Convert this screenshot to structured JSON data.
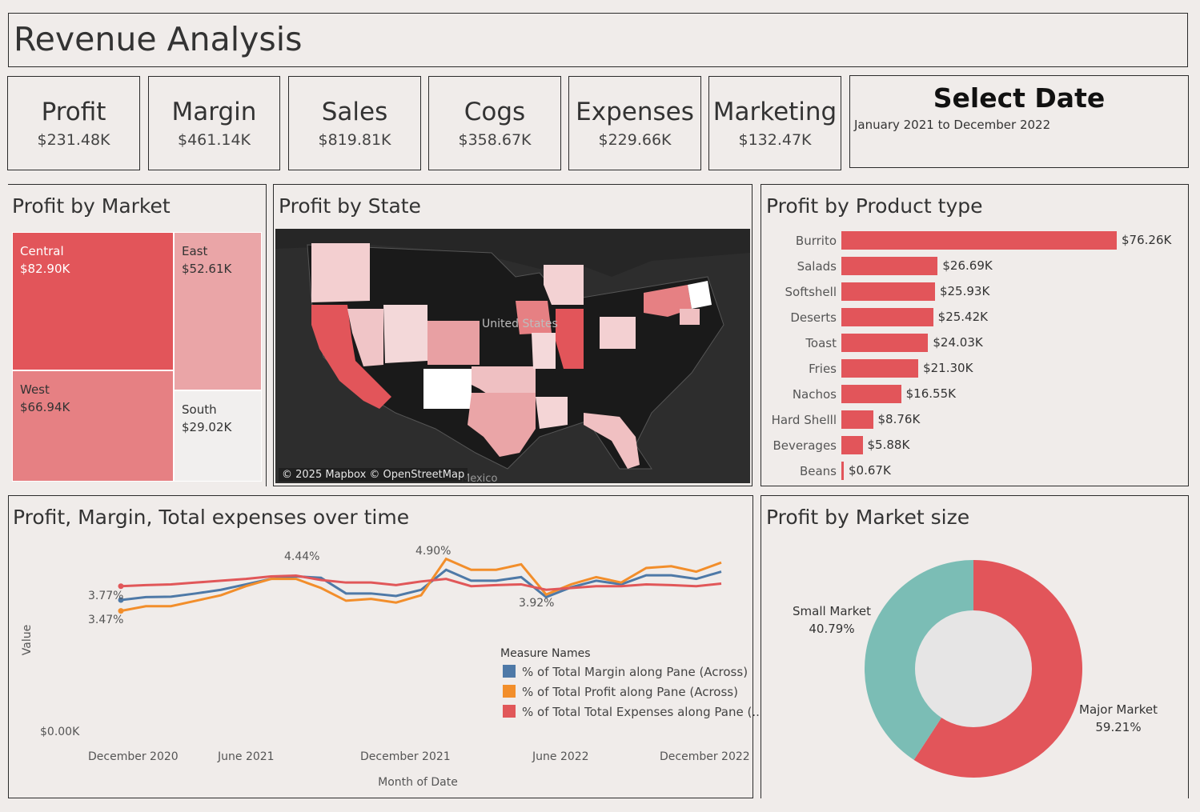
{
  "dashboard": {
    "title": "Revenue Analysis"
  },
  "kpis": [
    {
      "label": "Profit",
      "value": "$231.48K"
    },
    {
      "label": "Margin",
      "value": "$461.14K"
    },
    {
      "label": "Sales",
      "value": "$819.81K"
    },
    {
      "label": "Cogs",
      "value": "$358.67K"
    },
    {
      "label": "Expenses",
      "value": "$229.66K"
    },
    {
      "label": "Marketing",
      "value": "$132.47K"
    }
  ],
  "select_date": {
    "title": "Select Date",
    "range": "January 2021 to December 2022"
  },
  "market": {
    "title": "Profit by Market",
    "cells": [
      {
        "name": "Central",
        "value": "$82.90K",
        "color": "#e2555a"
      },
      {
        "name": "East",
        "value": "$52.61K",
        "color": "#eaa5a7"
      },
      {
        "name": "West",
        "value": "$66.94K",
        "color": "#e68083"
      },
      {
        "name": "South",
        "value": "$29.02K",
        "color": "#f1efee"
      }
    ]
  },
  "state_map": {
    "title": "Profit by State",
    "attribution": "© 2025 Mapbox © OpenStreetMap",
    "country_label": "United States",
    "mexico_label": "Mexico"
  },
  "product": {
    "title": "Profit by Product type",
    "items": [
      {
        "name": "Burrito",
        "value": 76.26,
        "label": "$76.26K"
      },
      {
        "name": "Salads",
        "value": 26.69,
        "label": "$26.69K"
      },
      {
        "name": "Softshell",
        "value": 25.93,
        "label": "$25.93K"
      },
      {
        "name": "Deserts",
        "value": 25.42,
        "label": "$25.42K"
      },
      {
        "name": "Toast",
        "value": 24.03,
        "label": "$24.03K"
      },
      {
        "name": "Fries",
        "value": 21.3,
        "label": "$21.30K"
      },
      {
        "name": "Nachos",
        "value": 16.55,
        "label": "$16.55K"
      },
      {
        "name": "Hard Shelll",
        "value": 8.76,
        "label": "$8.76K"
      },
      {
        "name": "Beverages",
        "value": 5.88,
        "label": "$5.88K"
      },
      {
        "name": "Beans",
        "value": 0.67,
        "label": "$0.67K"
      }
    ],
    "bar_color": "#e2555a"
  },
  "timeseries": {
    "title": "Profit, Margin, Total expenses over time",
    "ylabel": "Value",
    "xlabel": "Month of Date",
    "y_zero_label": "$0.00K",
    "x_ticks": [
      "December 2020",
      "June 2021",
      "December 2021",
      "June 2022",
      "December 2022"
    ],
    "legend_title": "Measure Names",
    "series": [
      {
        "name": "% of Total Margin along Pane (Across)",
        "color": "#4e79a7"
      },
      {
        "name": "% of Total Profit along Pane (Across)",
        "color": "#f28e2b"
      },
      {
        "name": "% of Total Total Expenses along Pane (..",
        "color": "#e15759"
      }
    ],
    "annotations": [
      "3.77%",
      "3.47%",
      "4.44%",
      "4.90%",
      "3.92%"
    ]
  },
  "market_size": {
    "title": "Profit by Market size",
    "slices": [
      {
        "name": "Major Market",
        "pct": "59.21%",
        "value": 59.21,
        "color": "#e2555a"
      },
      {
        "name": "Small Market",
        "pct": "40.79%",
        "value": 40.79,
        "color": "#7bbdb5"
      }
    ]
  },
  "chart_data": [
    {
      "type": "line",
      "title": "Profit, Margin, Total expenses over time",
      "xlabel": "Month of Date",
      "ylabel": "Value",
      "x": [
        "2020-12",
        "2021-01",
        "2021-02",
        "2021-03",
        "2021-04",
        "2021-05",
        "2021-06",
        "2021-07",
        "2021-08",
        "2021-09",
        "2021-10",
        "2021-11",
        "2021-12",
        "2022-01",
        "2022-02",
        "2022-03",
        "2022-04",
        "2022-05",
        "2022-06",
        "2022-07",
        "2022-08",
        "2022-09",
        "2022-10",
        "2022-11",
        "2022-12"
      ],
      "series": [
        {
          "name": "% of Total Margin along Pane (Across)",
          "values": [
            3.77,
            3.85,
            3.86,
            3.95,
            4.05,
            4.2,
            4.35,
            4.42,
            4.38,
            3.95,
            3.95,
            3.88,
            4.05,
            4.6,
            4.3,
            4.3,
            4.4,
            3.85,
            4.12,
            4.3,
            4.2,
            4.45,
            4.45,
            4.35,
            4.55
          ]
        },
        {
          "name": "% of Total Profit along Pane (Across)",
          "values": [
            3.47,
            3.6,
            3.6,
            3.75,
            3.9,
            4.15,
            4.35,
            4.35,
            4.1,
            3.75,
            3.8,
            3.7,
            3.9,
            4.9,
            4.6,
            4.6,
            4.75,
            3.92,
            4.2,
            4.4,
            4.25,
            4.65,
            4.7,
            4.55,
            4.8
          ]
        },
        {
          "name": "% of Total Total Expenses along Pane (..",
          "values": [
            4.15,
            4.18,
            4.2,
            4.25,
            4.3,
            4.35,
            4.42,
            4.44,
            4.32,
            4.25,
            4.25,
            4.18,
            4.28,
            4.35,
            4.15,
            4.18,
            4.2,
            4.05,
            4.1,
            4.15,
            4.15,
            4.2,
            4.18,
            4.15,
            4.22
          ]
        }
      ]
    },
    {
      "type": "bar",
      "title": "Profit by Product type",
      "categories": [
        "Burrito",
        "Salads",
        "Softshell",
        "Deserts",
        "Toast",
        "Fries",
        "Nachos",
        "Hard Shelll",
        "Beverages",
        "Beans"
      ],
      "values": [
        76.26,
        26.69,
        25.93,
        25.42,
        24.03,
        21.3,
        16.55,
        8.76,
        5.88,
        0.67
      ]
    },
    {
      "type": "pie",
      "title": "Profit by Market size",
      "categories": [
        "Major Market",
        "Small Market"
      ],
      "values": [
        59.21,
        40.79
      ]
    }
  ]
}
